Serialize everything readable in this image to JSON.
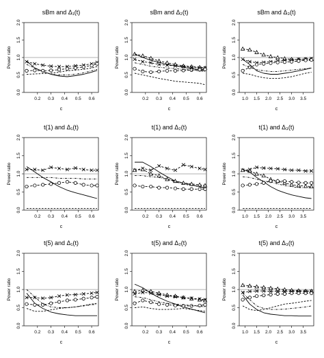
{
  "styles": {
    "solid": {
      "dash": "",
      "marker": "none"
    },
    "dashed": {
      "dash": "2.6,1.8",
      "marker": "none"
    },
    "dotdash": {
      "dash": "3,1.6,0.8,1.6",
      "marker": "none"
    },
    "cross": {
      "dash": "3.2,2",
      "marker": "x"
    },
    "circle": {
      "dash": "3.2,2",
      "marker": "o"
    },
    "triangle": {
      "dash": "3.2,2",
      "marker": "tri"
    }
  },
  "chart_data": [
    {
      "type": "line",
      "title": "sBm and Δ₁(t)",
      "xlabel": "c",
      "ylabel": "Power ratio",
      "xlim": [
        0.1,
        0.65
      ],
      "ylim": [
        0,
        2
      ],
      "reference_line": 1.0,
      "xticks": [
        0.2,
        0.3,
        0.4,
        0.5,
        0.6
      ],
      "yticks": [
        0.0,
        0.5,
        1.0,
        1.5,
        2.0
      ],
      "x": [
        0.12,
        0.18,
        0.24,
        0.3,
        0.36,
        0.42,
        0.48,
        0.54,
        0.6,
        0.64
      ],
      "series": [
        {
          "style": "solid",
          "values": [
            0.9,
            0.7,
            0.6,
            0.52,
            0.47,
            0.45,
            0.48,
            0.52,
            0.58,
            0.63
          ]
        },
        {
          "style": "cross",
          "values": [
            0.88,
            0.82,
            0.78,
            0.75,
            0.74,
            0.74,
            0.76,
            0.78,
            0.82,
            0.86
          ]
        },
        {
          "style": "circle",
          "values": [
            0.62,
            0.63,
            0.62,
            0.63,
            0.65,
            0.68,
            0.7,
            0.73,
            0.77,
            0.82
          ]
        },
        {
          "style": "dashed",
          "values": [
            0.52,
            0.53,
            0.54,
            0.55,
            0.58,
            0.62,
            0.64,
            0.66,
            0.7,
            0.74
          ]
        },
        {
          "style": "dotdash",
          "values": [
            0.8,
            0.7,
            0.6,
            0.52,
            0.5,
            0.5,
            0.52,
            0.56,
            0.62,
            0.66
          ]
        }
      ]
    },
    {
      "type": "line",
      "title": "sBm and Δ₂(t)",
      "xlabel": "c",
      "ylabel": "Power ratio",
      "xlim": [
        0.1,
        0.65
      ],
      "ylim": [
        0,
        2
      ],
      "reference_line": 1.0,
      "xticks": [
        0.2,
        0.3,
        0.4,
        0.5,
        0.6
      ],
      "yticks": [
        0.0,
        0.5,
        1.0,
        1.5,
        2.0
      ],
      "x": [
        0.12,
        0.18,
        0.24,
        0.3,
        0.36,
        0.42,
        0.48,
        0.54,
        0.6,
        0.64
      ],
      "series": [
        {
          "style": "triangle",
          "values": [
            1.1,
            1.05,
            0.98,
            0.9,
            0.85,
            0.8,
            0.76,
            0.74,
            0.72,
            0.7
          ]
        },
        {
          "style": "solid",
          "values": [
            1.1,
            1.0,
            0.92,
            0.86,
            0.8,
            0.76,
            0.72,
            0.68,
            0.65,
            0.62
          ]
        },
        {
          "style": "cross",
          "values": [
            0.95,
            0.88,
            0.85,
            0.8,
            0.78,
            0.76,
            0.74,
            0.72,
            0.7,
            0.7
          ]
        },
        {
          "style": "circle",
          "values": [
            0.68,
            0.6,
            0.58,
            0.6,
            0.62,
            0.62,
            0.63,
            0.64,
            0.65,
            0.66
          ]
        },
        {
          "style": "dashed",
          "values": [
            0.55,
            0.5,
            0.45,
            0.4,
            0.36,
            0.32,
            0.3,
            0.28,
            0.26,
            0.22
          ]
        },
        {
          "style": "dotdash",
          "values": [
            0.85,
            0.8,
            0.75,
            0.72,
            0.7,
            0.68,
            0.66,
            0.64,
            0.62,
            0.6
          ]
        }
      ]
    },
    {
      "type": "line",
      "title": "sBm and Δ₃(t)",
      "xlabel": "c",
      "ylabel": "Power ratio",
      "xlim": [
        0.75,
        3.95
      ],
      "ylim": [
        0,
        2
      ],
      "reference_line": 1.0,
      "xticks": [
        1.0,
        1.5,
        2.0,
        2.5,
        3.0,
        3.5
      ],
      "yticks": [
        0.0,
        0.5,
        1.0,
        1.5,
        2.0
      ],
      "x": [
        0.9,
        1.2,
        1.5,
        1.8,
        2.1,
        2.4,
        2.7,
        3.0,
        3.3,
        3.6,
        3.85
      ],
      "series": [
        {
          "style": "triangle",
          "values": [
            1.25,
            1.22,
            1.15,
            1.08,
            1.03,
            1.0,
            0.97,
            0.95,
            0.94,
            0.95,
            0.95
          ]
        },
        {
          "style": "solid",
          "values": [
            0.95,
            0.8,
            0.62,
            0.55,
            0.52,
            0.52,
            0.55,
            0.58,
            0.62,
            0.66,
            0.7
          ]
        },
        {
          "style": "cross",
          "values": [
            0.95,
            0.88,
            0.85,
            0.86,
            0.88,
            0.9,
            0.92,
            0.93,
            0.95,
            0.96,
            0.97
          ]
        },
        {
          "style": "circle",
          "values": [
            0.62,
            0.72,
            0.8,
            0.82,
            0.84,
            0.86,
            0.87,
            0.88,
            0.9,
            0.92,
            0.93
          ]
        },
        {
          "style": "dashed",
          "values": [
            0.55,
            0.52,
            0.46,
            0.42,
            0.4,
            0.4,
            0.42,
            0.45,
            0.5,
            0.55,
            0.58
          ]
        },
        {
          "style": "dotdash",
          "values": [
            0.8,
            0.72,
            0.65,
            0.62,
            0.6,
            0.6,
            0.62,
            0.64,
            0.66,
            0.68,
            0.7
          ]
        }
      ]
    },
    {
      "type": "line",
      "title": "t(1) and Δ₁(t)",
      "xlabel": "c",
      "ylabel": "Power ratio",
      "xlim": [
        0.1,
        0.65
      ],
      "ylim": [
        0,
        2
      ],
      "reference_line": 1.0,
      "xticks": [
        0.2,
        0.3,
        0.4,
        0.5,
        0.6
      ],
      "yticks": [
        0.0,
        0.5,
        1.0,
        1.5,
        2.0
      ],
      "x": [
        0.12,
        0.18,
        0.24,
        0.3,
        0.36,
        0.42,
        0.48,
        0.54,
        0.6,
        0.64
      ],
      "series": [
        {
          "style": "cross",
          "values": [
            1.12,
            1.12,
            1.1,
            1.18,
            1.15,
            1.12,
            1.16,
            1.12,
            1.1,
            1.1
          ]
        },
        {
          "style": "solid",
          "values": [
            1.2,
            1.05,
            0.9,
            0.78,
            0.65,
            0.55,
            0.48,
            0.42,
            0.36,
            0.32
          ]
        },
        {
          "style": "dotdash",
          "values": [
            0.9,
            0.9,
            0.9,
            0.9,
            0.88,
            0.88,
            0.88,
            0.86,
            0.86,
            0.86
          ]
        },
        {
          "style": "circle",
          "values": [
            0.65,
            0.68,
            0.7,
            0.72,
            0.75,
            0.78,
            0.75,
            0.7,
            0.68,
            0.68
          ]
        },
        {
          "style": "dashed",
          "values": [
            0.05,
            0.05,
            0.05,
            0.05,
            0.05,
            0.05,
            0.05,
            0.05,
            0.05,
            0.05
          ]
        }
      ]
    },
    {
      "type": "line",
      "title": "t(1) and Δ₂(t)",
      "xlabel": "c",
      "ylabel": "Power ratio",
      "xlim": [
        0.1,
        0.65
      ],
      "ylim": [
        0,
        2
      ],
      "reference_line": 1.0,
      "xticks": [
        0.2,
        0.3,
        0.4,
        0.5,
        0.6
      ],
      "yticks": [
        0.0,
        0.5,
        1.0,
        1.5,
        2.0
      ],
      "x": [
        0.12,
        0.18,
        0.24,
        0.3,
        0.36,
        0.42,
        0.48,
        0.54,
        0.6,
        0.64
      ],
      "series": [
        {
          "style": "solid",
          "values": [
            1.32,
            1.32,
            1.2,
            1.05,
            0.92,
            0.8,
            0.75,
            0.7,
            0.65,
            0.6
          ]
        },
        {
          "style": "cross",
          "values": [
            1.1,
            1.15,
            1.1,
            1.22,
            1.15,
            1.1,
            1.25,
            1.2,
            1.15,
            1.12
          ]
        },
        {
          "style": "triangle",
          "values": [
            1.1,
            1.12,
            1.0,
            0.95,
            0.85,
            0.8,
            0.75,
            0.72,
            0.7,
            0.68
          ]
        },
        {
          "style": "circle",
          "values": [
            0.68,
            0.65,
            0.65,
            0.62,
            0.62,
            0.6,
            0.58,
            0.58,
            0.58,
            0.58
          ]
        },
        {
          "style": "dotdash",
          "values": [
            0.95,
            0.95,
            0.92,
            0.9,
            0.85,
            0.78,
            0.72,
            0.68,
            0.65,
            0.6
          ]
        },
        {
          "style": "dashed",
          "values": [
            0.05,
            0.05,
            0.05,
            0.05,
            0.05,
            0.05,
            0.05,
            0.05,
            0.05,
            0.05
          ]
        }
      ]
    },
    {
      "type": "line",
      "title": "t(1) and Δ₃(t)",
      "xlabel": "c",
      "ylabel": "Power ratio",
      "xlim": [
        0.75,
        3.95
      ],
      "ylim": [
        0,
        2
      ],
      "reference_line": 1.0,
      "xticks": [
        1.0,
        1.5,
        2.0,
        2.5,
        3.0,
        3.5
      ],
      "yticks": [
        0.0,
        0.5,
        1.0,
        1.5,
        2.0
      ],
      "x": [
        0.9,
        1.2,
        1.5,
        1.8,
        2.1,
        2.4,
        2.7,
        3.0,
        3.3,
        3.6,
        3.85
      ],
      "series": [
        {
          "style": "cross",
          "values": [
            1.1,
            1.12,
            1.18,
            1.16,
            1.15,
            1.14,
            1.12,
            1.1,
            1.1,
            1.08,
            1.08
          ]
        },
        {
          "style": "triangle",
          "values": [
            1.1,
            1.08,
            1.0,
            0.95,
            0.85,
            0.8,
            0.75,
            0.7,
            0.68,
            0.66,
            0.65
          ]
        },
        {
          "style": "solid",
          "values": [
            1.12,
            1.05,
            0.9,
            0.78,
            0.65,
            0.55,
            0.48,
            0.42,
            0.38,
            0.34,
            0.32
          ]
        },
        {
          "style": "circle",
          "values": [
            0.68,
            0.7,
            0.72,
            0.75,
            0.8,
            0.8,
            0.8,
            0.78,
            0.76,
            0.75,
            0.75
          ]
        },
        {
          "style": "dotdash",
          "values": [
            0.92,
            0.9,
            0.85,
            0.8,
            0.78,
            0.72,
            0.68,
            0.65,
            0.62,
            0.62,
            0.62
          ]
        },
        {
          "style": "dashed",
          "values": [
            0.05,
            0.05,
            0.05,
            0.05,
            0.05,
            0.05,
            0.05,
            0.05,
            0.05,
            0.05,
            0.05
          ]
        }
      ]
    },
    {
      "type": "line",
      "title": "t(5) and Δ₁(t)",
      "xlabel": "c",
      "ylabel": "Power ratio",
      "xlim": [
        0.1,
        0.65
      ],
      "ylim": [
        0,
        2
      ],
      "reference_line": 1.0,
      "xticks": [
        0.2,
        0.3,
        0.4,
        0.5,
        0.6
      ],
      "yticks": [
        0.0,
        0.5,
        1.0,
        1.5,
        2.0
      ],
      "x": [
        0.12,
        0.18,
        0.24,
        0.3,
        0.36,
        0.42,
        0.48,
        0.54,
        0.6,
        0.64
      ],
      "series": [
        {
          "style": "solid",
          "values": [
            0.9,
            0.62,
            0.48,
            0.38,
            0.33,
            0.3,
            0.28,
            0.28,
            0.28,
            0.28
          ]
        },
        {
          "style": "cross",
          "values": [
            0.78,
            0.78,
            0.76,
            0.78,
            0.82,
            0.85,
            0.86,
            0.88,
            0.9,
            0.92
          ]
        },
        {
          "style": "circle",
          "values": [
            0.6,
            0.58,
            0.58,
            0.62,
            0.66,
            0.7,
            0.72,
            0.75,
            0.78,
            0.8
          ]
        },
        {
          "style": "dashed",
          "values": [
            0.48,
            0.4,
            0.4,
            0.44,
            0.48,
            0.5,
            0.52,
            0.56,
            0.6,
            0.62
          ]
        },
        {
          "style": "dotdash",
          "values": [
            1.0,
            0.8,
            0.6,
            0.52,
            0.5,
            0.5,
            0.52,
            0.55,
            0.58,
            0.6
          ]
        }
      ]
    },
    {
      "type": "line",
      "title": "t(5) and Δ₂(t)",
      "xlabel": "c",
      "ylabel": "Power ratio",
      "xlim": [
        0.1,
        0.65
      ],
      "ylim": [
        0,
        2
      ],
      "reference_line": 1.0,
      "xticks": [
        0.2,
        0.3,
        0.4,
        0.5,
        0.6
      ],
      "yticks": [
        0.0,
        0.5,
        1.0,
        1.5,
        2.0
      ],
      "x": [
        0.12,
        0.18,
        0.24,
        0.3,
        0.36,
        0.42,
        0.48,
        0.54,
        0.6,
        0.64
      ],
      "series": [
        {
          "style": "solid",
          "values": [
            1.15,
            1.05,
            0.9,
            0.78,
            0.68,
            0.6,
            0.52,
            0.46,
            0.4,
            0.36
          ]
        },
        {
          "style": "triangle",
          "values": [
            0.95,
            0.98,
            0.95,
            0.9,
            0.85,
            0.82,
            0.78,
            0.75,
            0.72,
            0.7
          ]
        },
        {
          "style": "cross",
          "values": [
            0.88,
            0.92,
            0.9,
            0.86,
            0.82,
            0.8,
            0.78,
            0.76,
            0.74,
            0.72
          ]
        },
        {
          "style": "circle",
          "values": [
            0.62,
            0.7,
            0.65,
            0.6,
            0.58,
            0.56,
            0.55,
            0.55,
            0.56,
            0.58
          ]
        },
        {
          "style": "dashed",
          "values": [
            0.5,
            0.52,
            0.48,
            0.45,
            0.45,
            0.46,
            0.48,
            0.45,
            0.42,
            0.4
          ]
        },
        {
          "style": "dotdash",
          "values": [
            0.8,
            0.78,
            0.72,
            0.66,
            0.62,
            0.6,
            0.58,
            0.56,
            0.54,
            0.52
          ]
        }
      ]
    },
    {
      "type": "line",
      "title": "t(5) and Δ₃(t)",
      "xlabel": "c",
      "ylabel": "Power ratio",
      "xlim": [
        0.75,
        3.95
      ],
      "ylim": [
        0,
        2
      ],
      "reference_line": 1.0,
      "xticks": [
        1.0,
        1.5,
        2.0,
        2.5,
        3.0,
        3.5
      ],
      "yticks": [
        0.0,
        0.5,
        1.0,
        1.5,
        2.0
      ],
      "x": [
        0.9,
        1.2,
        1.5,
        1.8,
        2.1,
        2.4,
        2.7,
        3.0,
        3.3,
        3.6,
        3.85
      ],
      "series": [
        {
          "style": "triangle",
          "values": [
            1.12,
            1.1,
            1.08,
            1.06,
            1.04,
            1.02,
            1.0,
            0.98,
            0.97,
            0.96,
            0.96
          ]
        },
        {
          "style": "cross",
          "values": [
            0.92,
            0.95,
            0.96,
            0.96,
            0.95,
            0.95,
            0.95,
            0.95,
            0.95,
            0.95,
            0.95
          ]
        },
        {
          "style": "circle",
          "values": [
            0.72,
            0.78,
            0.82,
            0.84,
            0.86,
            0.88,
            0.88,
            0.9,
            0.9,
            0.9,
            0.9
          ]
        },
        {
          "style": "solid",
          "values": [
            0.85,
            0.6,
            0.45,
            0.36,
            0.32,
            0.3,
            0.28,
            0.28,
            0.27,
            0.27,
            0.27
          ]
        },
        {
          "style": "dashed",
          "values": [
            0.55,
            0.45,
            0.42,
            0.45,
            0.5,
            0.55,
            0.6,
            0.62,
            0.65,
            0.68,
            0.7
          ]
        },
        {
          "style": "dotdash",
          "values": [
            0.9,
            0.72,
            0.55,
            0.48,
            0.45,
            0.45,
            0.46,
            0.48,
            0.5,
            0.52,
            0.55
          ]
        }
      ]
    }
  ]
}
